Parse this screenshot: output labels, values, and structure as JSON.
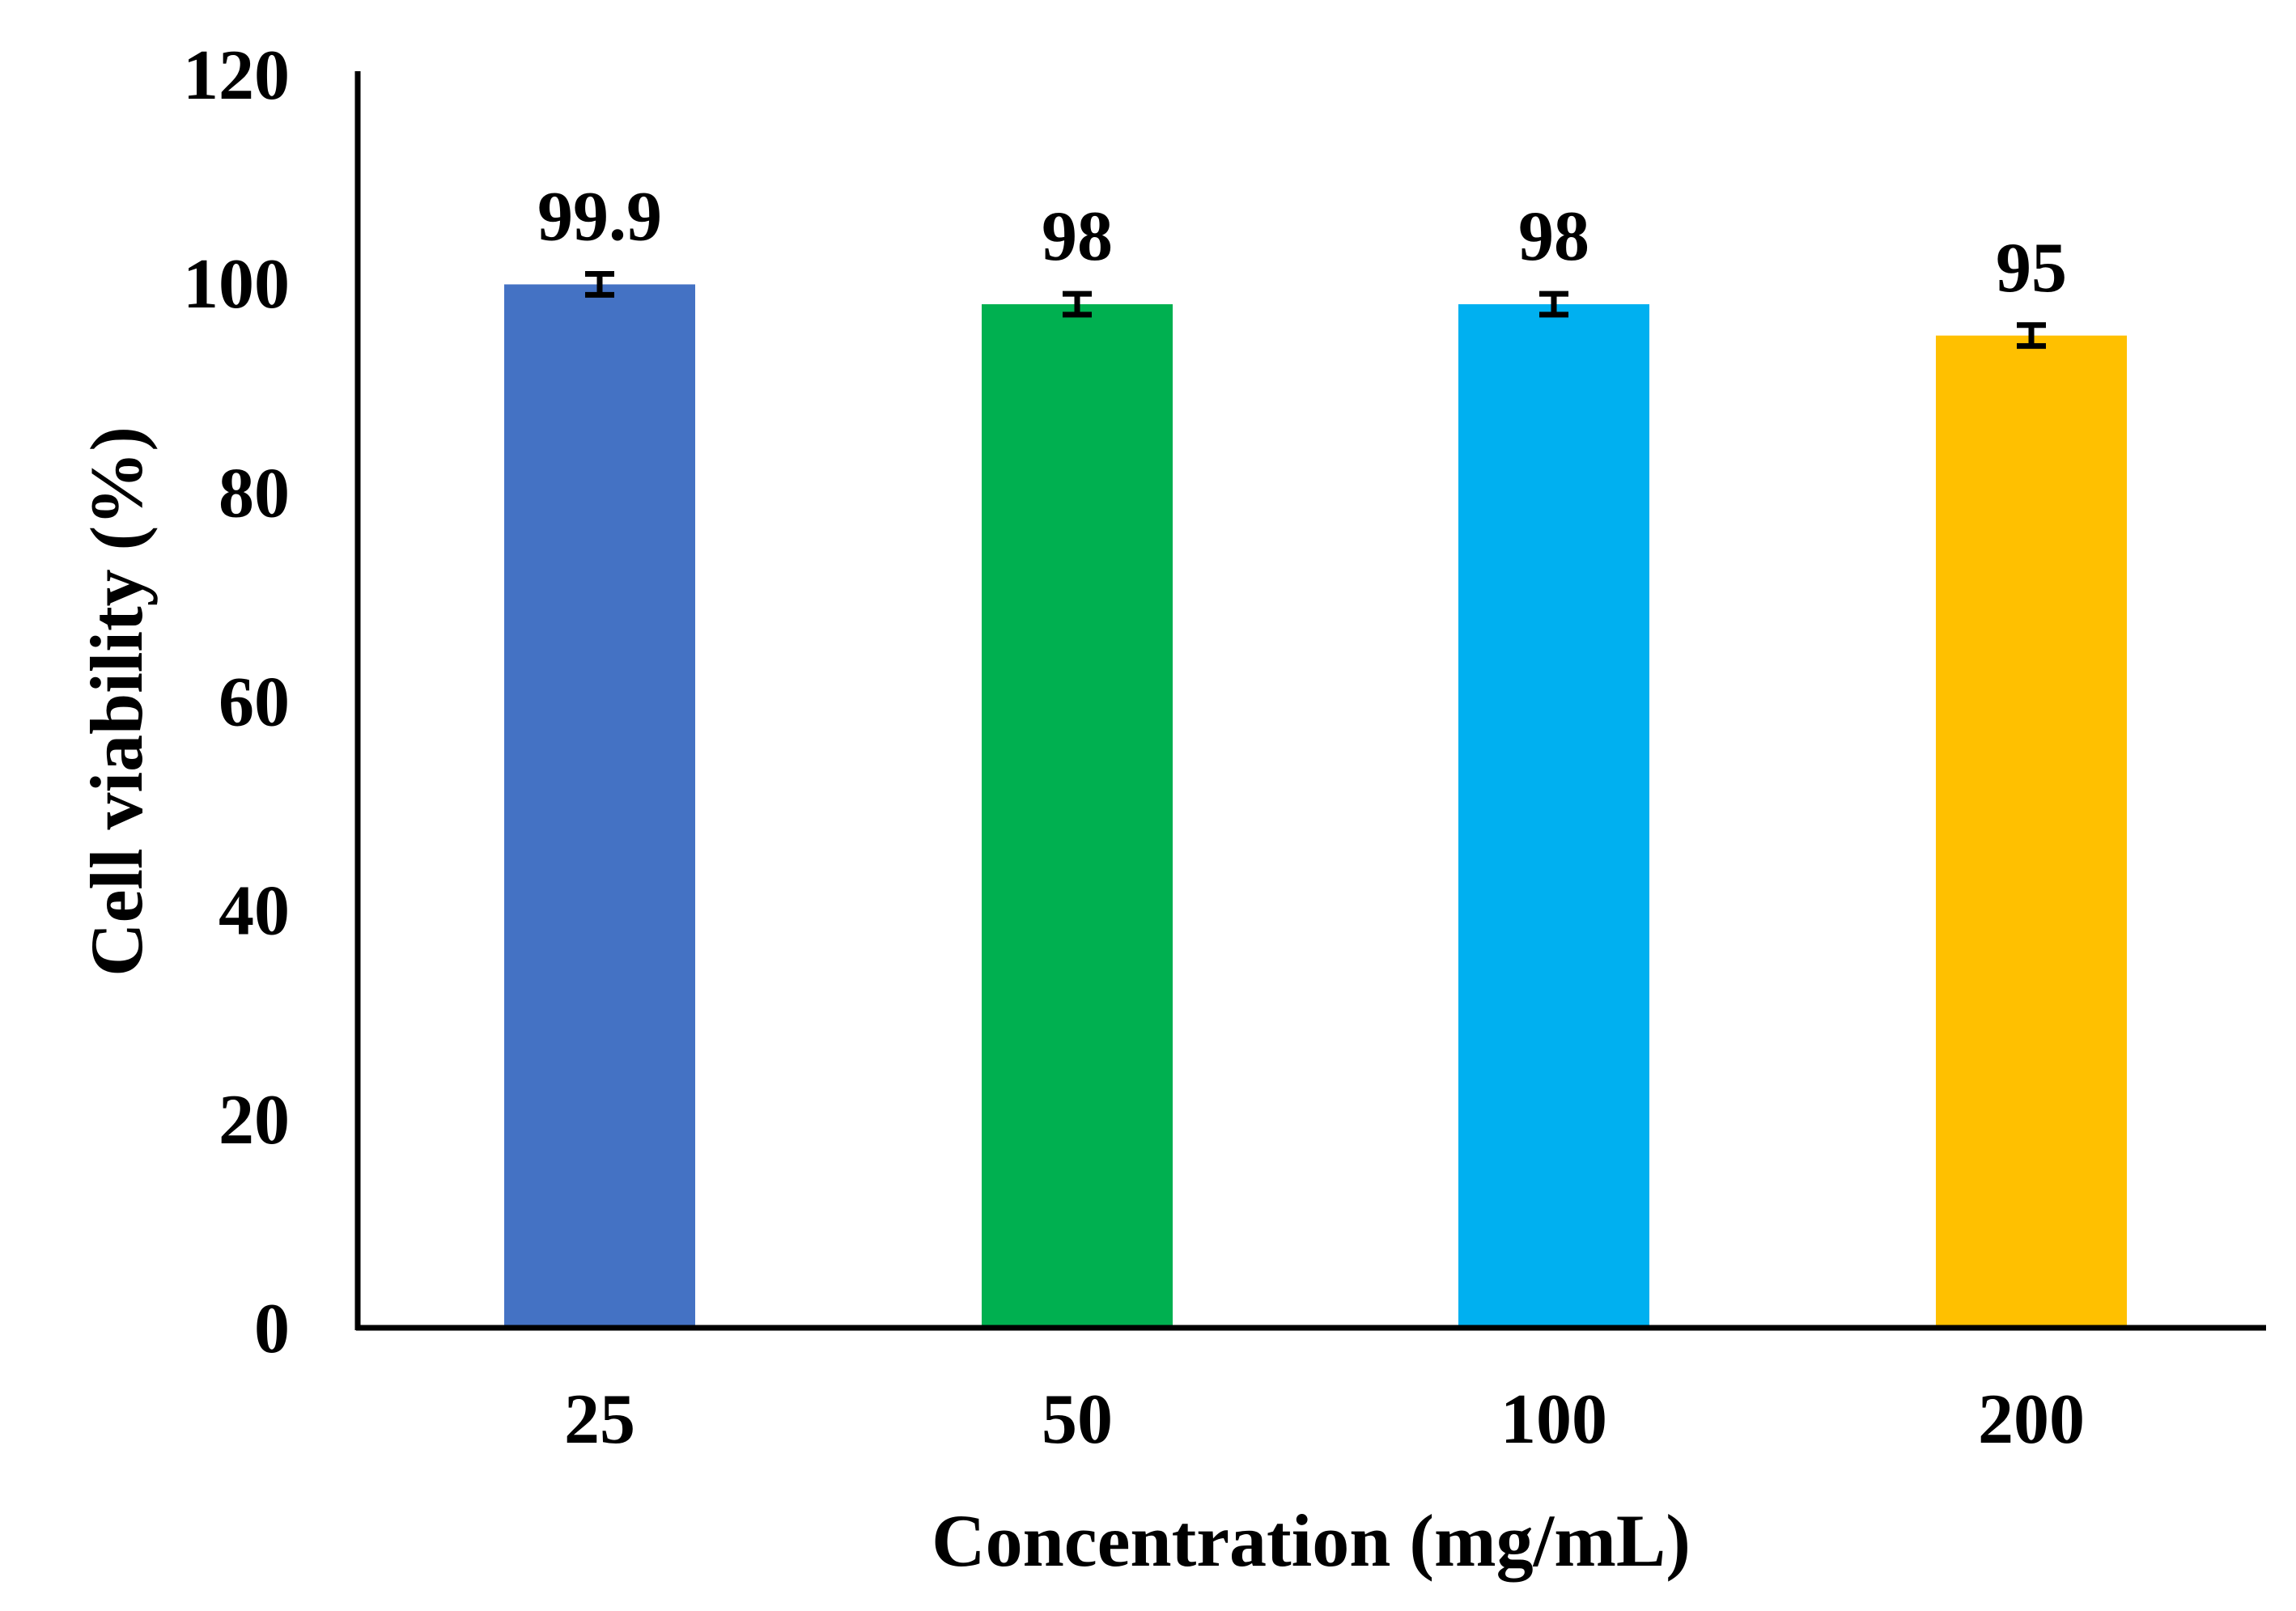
{
  "chart_data": {
    "type": "bar",
    "title": "",
    "xlabel": "Concentration (mg/mL)",
    "ylabel": "Cell viability (%)",
    "ylim": [
      0,
      120
    ],
    "yticks": [
      0,
      20,
      40,
      60,
      80,
      100,
      120
    ],
    "grid": false,
    "categories": [
      "25",
      "50",
      "100",
      "200"
    ],
    "values": [
      99.9,
      98,
      98,
      95
    ],
    "value_labels": [
      "99.9",
      "98",
      "98",
      "95"
    ],
    "error": [
      1.0,
      1.0,
      1.0,
      1.0
    ],
    "colors": [
      "#4472C4",
      "#00B050",
      "#00B0F0",
      "#FFC000"
    ]
  }
}
